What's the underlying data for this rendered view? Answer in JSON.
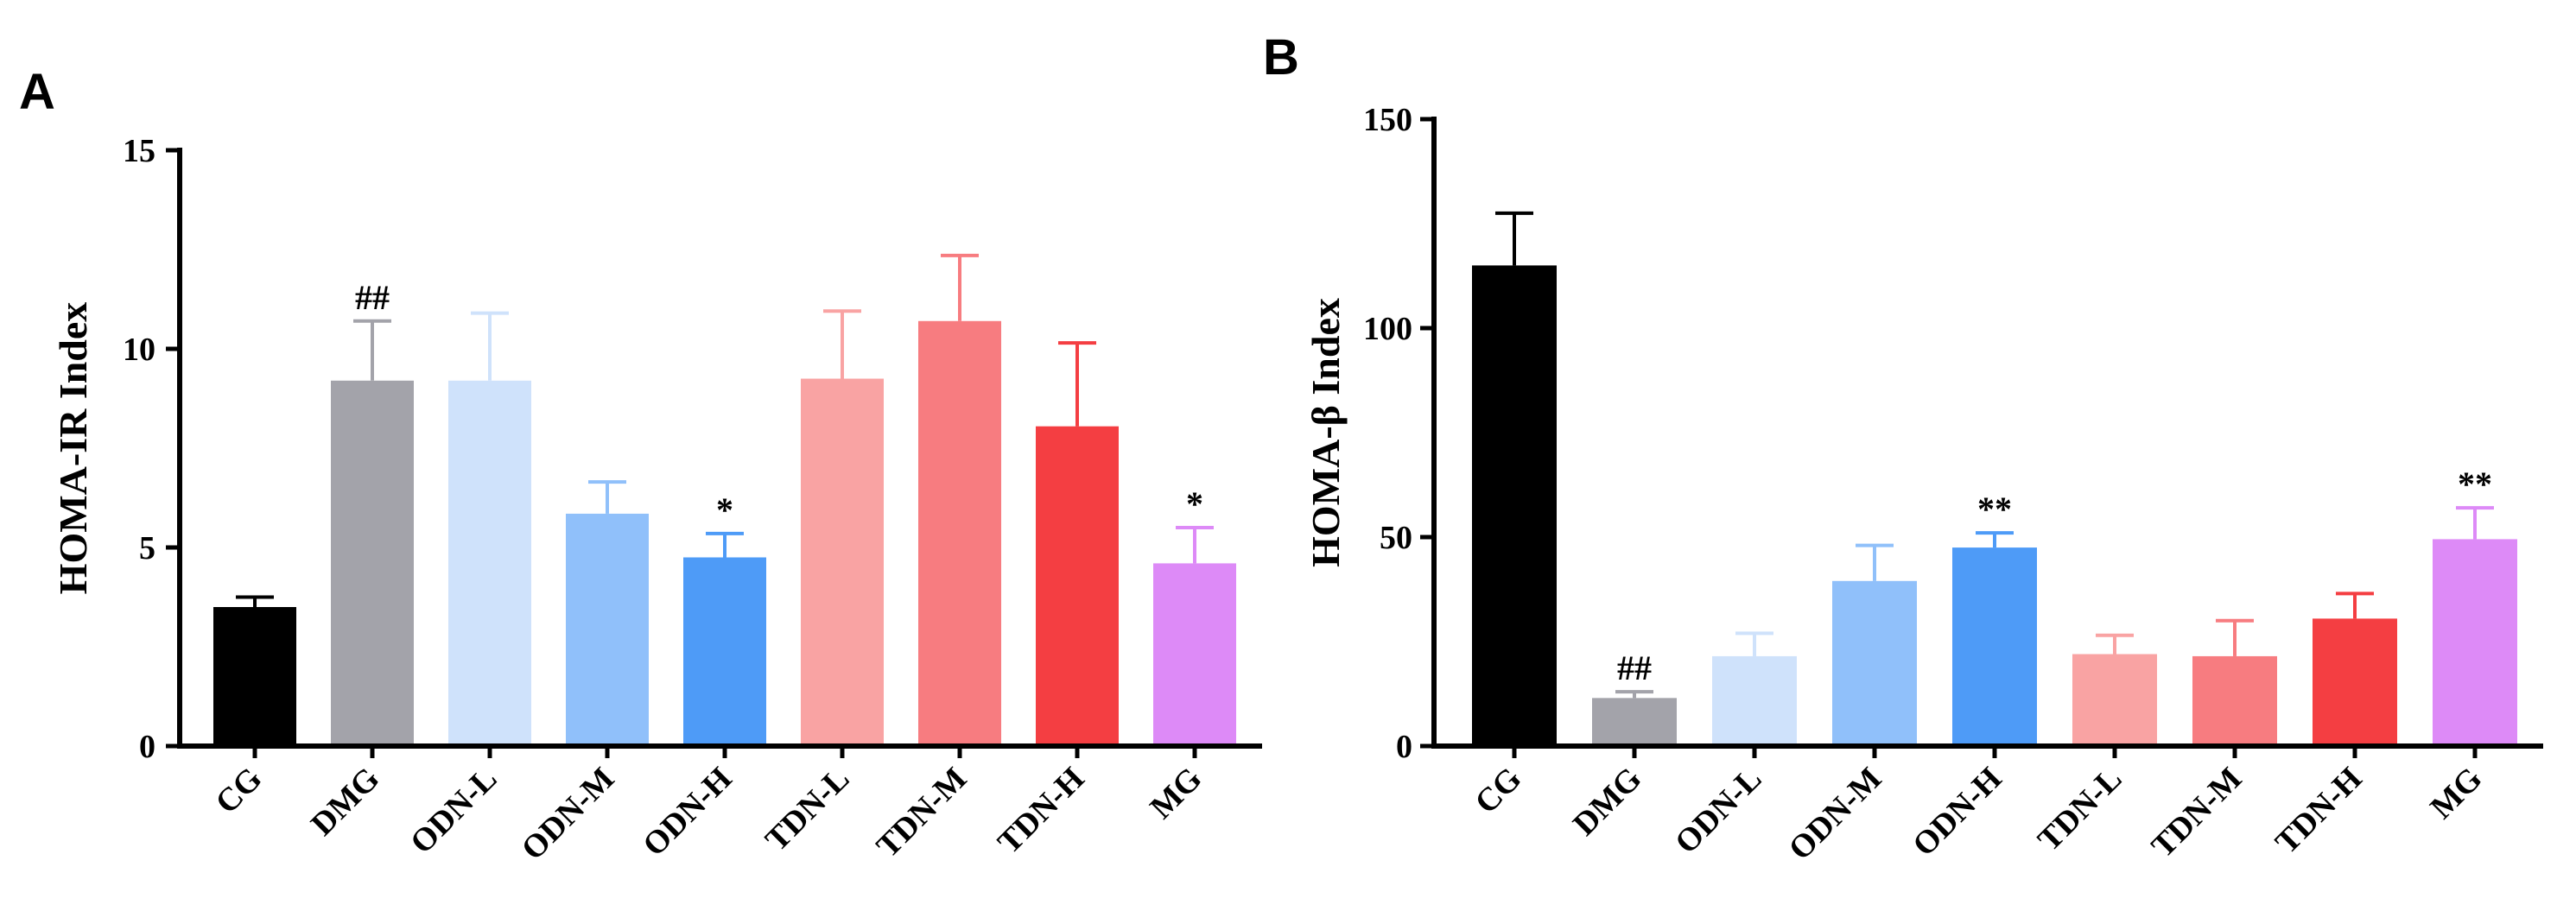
{
  "chart_data": [
    {
      "type": "bar",
      "panel_label": "A",
      "ylabel": "HOMA-IR Index",
      "xlabel": "",
      "ylim": [
        0,
        15
      ],
      "yticks": [
        0,
        5,
        10,
        15
      ],
      "categories": [
        "CG",
        "DMG",
        "ODN-L",
        "ODN-M",
        "ODN-H",
        "TDN-L",
        "TDN-M",
        "TDN-H",
        "MG"
      ],
      "values": [
        3.5,
        9.2,
        9.2,
        5.85,
        4.75,
        9.25,
        10.7,
        8.05,
        4.6
      ],
      "errors": [
        0.25,
        1.5,
        1.7,
        0.8,
        0.6,
        1.7,
        1.65,
        2.1,
        0.9
      ],
      "annotations": [
        "",
        "##",
        "",
        "",
        "*",
        "",
        "",
        "",
        "*"
      ],
      "colors": [
        "#000000",
        "#a3a3aa",
        "#cfe2fb",
        "#90c0fa",
        "#4e9bf7",
        "#f9a3a3",
        "#f77c80",
        "#f43e42",
        "#dd8af7"
      ]
    },
    {
      "type": "bar",
      "panel_label": "B",
      "ylabel": "HOMA-β Index",
      "xlabel": "",
      "ylim": [
        0,
        150
      ],
      "yticks": [
        0,
        50,
        100,
        150
      ],
      "categories": [
        "CG",
        "DMG",
        "ODN-L",
        "ODN-M",
        "ODN-H",
        "TDN-L",
        "TDN-M",
        "TDN-H",
        "MG"
      ],
      "values": [
        115,
        11.5,
        21.5,
        39.5,
        47.5,
        22,
        21.5,
        30.5,
        49.5
      ],
      "errors": [
        12.5,
        1.5,
        5.5,
        8.5,
        3.5,
        4.5,
        8.5,
        6,
        7.5
      ],
      "annotations": [
        "",
        "##",
        "",
        "",
        "**",
        "",
        "",
        "",
        "**"
      ],
      "colors": [
        "#000000",
        "#a3a3aa",
        "#cfe2fb",
        "#90c0fa",
        "#4e9bf7",
        "#f9a3a3",
        "#f77c80",
        "#f43e42",
        "#dd8af7"
      ]
    }
  ]
}
